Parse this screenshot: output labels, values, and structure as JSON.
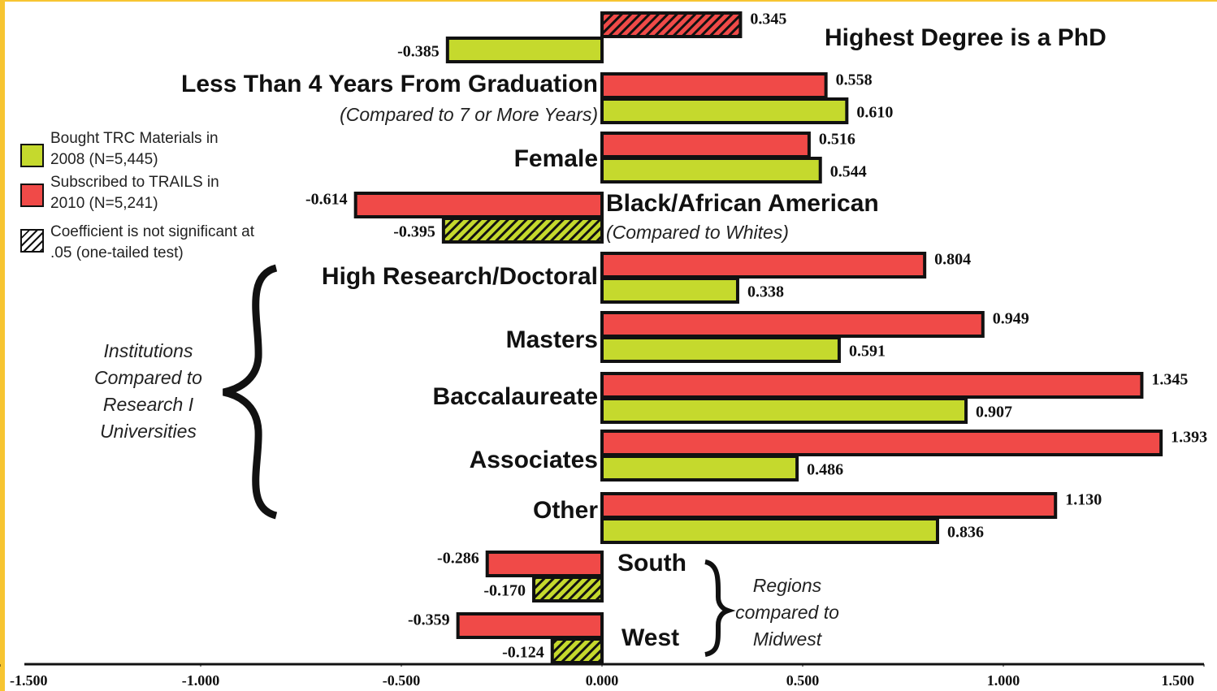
{
  "chart_data": {
    "type": "bar",
    "orientation": "horizontal",
    "categories": [
      "Highest Degree is a PhD",
      "Less Than 4 Years From Graduation",
      "Female",
      "Black/African American",
      "High Research/Doctoral",
      "Masters",
      "Baccalaureate",
      "Associates",
      "Other",
      "South",
      "West"
    ],
    "sublabels": [
      null,
      "(Compared to 7 or More Years)",
      null,
      "(Compared to Whites)",
      null,
      null,
      null,
      null,
      null,
      null,
      null
    ],
    "series": [
      {
        "name": "Subscribed to TRAILS in 2010 (N=5,241)",
        "color": "#f04a48",
        "values": [
          0.345,
          0.558,
          0.516,
          -0.614,
          0.804,
          0.949,
          1.345,
          1.393,
          1.13,
          -0.286,
          -0.359
        ],
        "value_labels": [
          "0.345",
          "0.558",
          "0.516",
          "-0.614",
          "0.804",
          "0.949",
          "1.345",
          "1.393",
          "1.130",
          "-0.286",
          "-0.359"
        ],
        "significant": [
          false,
          true,
          true,
          true,
          true,
          true,
          true,
          true,
          true,
          true,
          true
        ]
      },
      {
        "name": "Bought TRC Materials in 2008 (N=5,445)",
        "color": "#c5d92d",
        "values": [
          -0.385,
          0.61,
          0.544,
          -0.395,
          0.338,
          0.591,
          0.907,
          0.486,
          0.836,
          -0.17,
          -0.124
        ],
        "value_labels": [
          "-0.385",
          "0.610",
          "0.544",
          "-0.395",
          "0.338",
          "0.591",
          "0.907",
          "0.486",
          "0.836",
          "-0.170",
          "-0.124"
        ],
        "significant": [
          true,
          true,
          true,
          false,
          true,
          true,
          true,
          true,
          true,
          false,
          false
        ]
      }
    ],
    "hatch_legend": "Coefficient is not significant at .05 (one-tailed test)",
    "annotations": [
      "Institutions Compared to Research I Universities",
      "Regions compared to Midwest"
    ],
    "xlim": [
      -1.5,
      1.5
    ],
    "xticks": [
      {
        "value": -1.5,
        "label": "-1.500"
      },
      {
        "value": -1,
        "label": "-1.000"
      },
      {
        "value": -0.5,
        "label": "-0.500"
      },
      {
        "value": 0,
        "label": "0.000"
      },
      {
        "value": 0.5,
        "label": "0.500"
      },
      {
        "value": 1,
        "label": "1.000"
      },
      {
        "value": 1.5,
        "label": "1.500"
      }
    ],
    "grid": false
  }
}
